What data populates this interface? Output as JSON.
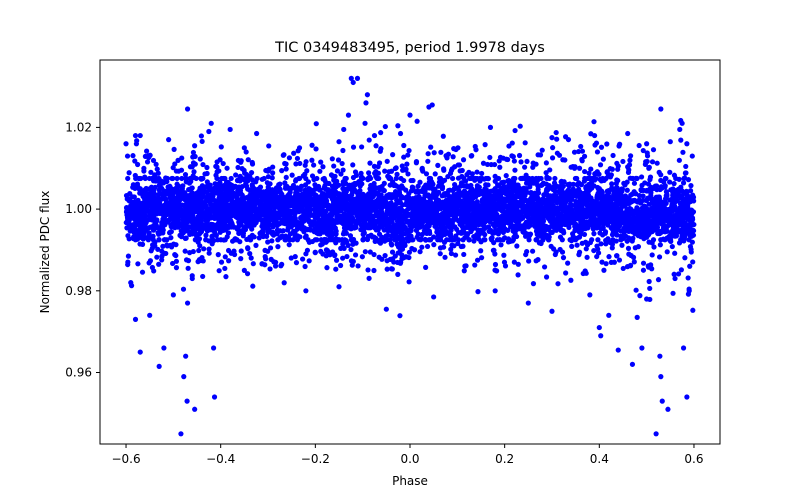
{
  "chart_data": {
    "type": "scatter",
    "title": "TIC 0349483495, period 1.9978 days",
    "xlabel": "Phase",
    "ylabel": "Normalized PDC flux",
    "xlim": [
      -0.655,
      0.655
    ],
    "ylim": [
      0.9425,
      1.0365
    ],
    "xticks": [
      -0.6,
      -0.4,
      -0.2,
      0.0,
      0.2,
      0.4,
      0.6
    ],
    "xtick_labels": [
      "−0.6",
      "−0.4",
      "−0.2",
      "0.0",
      "0.2",
      "0.4",
      "0.6"
    ],
    "yticks": [
      0.96,
      0.98,
      1.0,
      1.02
    ],
    "ytick_labels": [
      "0.96",
      "0.98",
      "1.00",
      "1.02"
    ],
    "marker_color": "#0000ff",
    "grid": false,
    "series": [
      {
        "name": "PDC flux",
        "core_band": {
          "x_range": [
            -0.6,
            0.6
          ],
          "y_center": 1.0,
          "y_halfwidth": 0.0075
        },
        "dips": [
          {
            "x_range": [
              -0.6,
              -0.56
            ],
            "y_min": 0.9925
          },
          {
            "x_range": [
              -0.04,
              0.0
            ],
            "y_min": 0.987
          },
          {
            "x_range": [
              0.45,
              0.6
            ],
            "y_min": 0.9925
          }
        ],
        "outliers": [
          {
            "x": -0.484,
            "y": 0.945
          },
          {
            "x": -0.478,
            "y": 0.959
          },
          {
            "x": -0.474,
            "y": 0.964
          },
          {
            "x": -0.471,
            "y": 0.953
          },
          {
            "x": -0.455,
            "y": 0.951
          },
          {
            "x": -0.415,
            "y": 0.966
          },
          {
            "x": -0.413,
            "y": 0.954
          },
          {
            "x": -0.52,
            "y": 0.966
          },
          {
            "x": -0.58,
            "y": 0.973
          },
          {
            "x": -0.57,
            "y": 0.965
          },
          {
            "x": -0.53,
            "y": 0.9615
          },
          {
            "x": -0.55,
            "y": 0.974
          },
          {
            "x": -0.5,
            "y": 0.979
          },
          {
            "x": -0.47,
            "y": 0.977
          },
          {
            "x": -0.59,
            "y": 0.982
          },
          {
            "x": -0.46,
            "y": 0.983
          },
          {
            "x": -0.35,
            "y": 0.985
          },
          {
            "x": -0.22,
            "y": 0.98
          },
          {
            "x": -0.15,
            "y": 0.981
          },
          {
            "x": -0.05,
            "y": 0.9755
          },
          {
            "x": 0.05,
            "y": 0.9785
          },
          {
            "x": 0.18,
            "y": 0.98
          },
          {
            "x": 0.25,
            "y": 0.977
          },
          {
            "x": 0.3,
            "y": 0.975
          },
          {
            "x": 0.38,
            "y": 0.979
          },
          {
            "x": 0.4,
            "y": 0.971
          },
          {
            "x": 0.403,
            "y": 0.969
          },
          {
            "x": 0.42,
            "y": 0.974
          },
          {
            "x": 0.44,
            "y": 0.9655
          },
          {
            "x": 0.47,
            "y": 0.962
          },
          {
            "x": 0.48,
            "y": 0.9735
          },
          {
            "x": 0.49,
            "y": 0.966
          },
          {
            "x": 0.52,
            "y": 0.945
          },
          {
            "x": 0.528,
            "y": 0.964
          },
          {
            "x": 0.53,
            "y": 0.959
          },
          {
            "x": 0.533,
            "y": 0.953
          },
          {
            "x": 0.545,
            "y": 0.951
          },
          {
            "x": 0.578,
            "y": 0.966
          },
          {
            "x": 0.585,
            "y": 0.954
          },
          {
            "x": 0.56,
            "y": 0.983
          },
          {
            "x": 0.59,
            "y": 0.98
          },
          {
            "x": 0.5,
            "y": 0.978
          },
          {
            "x": -0.124,
            "y": 1.032
          },
          {
            "x": -0.111,
            "y": 1.032
          },
          {
            "x": -0.12,
            "y": 1.031
          },
          {
            "x": -0.09,
            "y": 1.028
          },
          {
            "x": -0.093,
            "y": 1.026
          },
          {
            "x": -0.13,
            "y": 1.023
          },
          {
            "x": -0.095,
            "y": 1.021
          },
          {
            "x": -0.14,
            "y": 1.0195
          },
          {
            "x": -0.15,
            "y": 1.0165
          },
          {
            "x": -0.075,
            "y": 1.018
          },
          {
            "x": -0.02,
            "y": 1.0185
          },
          {
            "x": 0.0,
            "y": 1.023
          },
          {
            "x": 0.015,
            "y": 1.0215
          },
          {
            "x": 0.04,
            "y": 1.025
          },
          {
            "x": 0.047,
            "y": 1.0255
          },
          {
            "x": -0.47,
            "y": 1.0245
          },
          {
            "x": -0.42,
            "y": 1.021
          },
          {
            "x": -0.425,
            "y": 1.019
          },
          {
            "x": -0.38,
            "y": 1.0195
          },
          {
            "x": -0.51,
            "y": 1.017
          },
          {
            "x": -0.58,
            "y": 1.018
          },
          {
            "x": -0.57,
            "y": 1.018
          },
          {
            "x": -0.6,
            "y": 1.016
          },
          {
            "x": -0.35,
            "y": 1.015
          },
          {
            "x": 0.17,
            "y": 1.02
          },
          {
            "x": 0.3,
            "y": 1.0175
          },
          {
            "x": 0.39,
            "y": 1.018
          },
          {
            "x": 0.46,
            "y": 1.0185
          },
          {
            "x": 0.5,
            "y": 1.016
          },
          {
            "x": 0.53,
            "y": 1.0245
          },
          {
            "x": 0.575,
            "y": 1.021
          },
          {
            "x": 0.57,
            "y": 1.0195
          },
          {
            "x": 0.55,
            "y": 1.0165
          },
          {
            "x": 0.585,
            "y": 1.016
          }
        ]
      }
    ]
  }
}
